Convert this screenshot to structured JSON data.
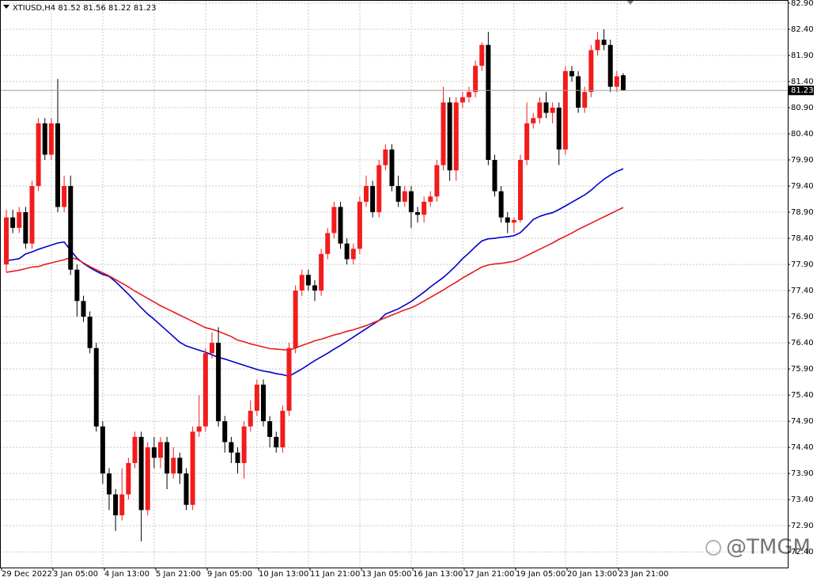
{
  "chart_data": {
    "type": "candlestick",
    "title": "XTIUSD,H4",
    "categories": [
      "29 Dec 2022",
      null,
      null,
      null,
      null,
      null,
      null,
      null,
      "3 Jan 05:00",
      null,
      null,
      null,
      null,
      null,
      null,
      null,
      "4 Jan 13:00",
      null,
      null,
      null,
      null,
      null,
      null,
      null,
      "5 Jan 21:00",
      null,
      null,
      null,
      null,
      null,
      null,
      null,
      "9 Jan 05:00",
      null,
      null,
      null,
      null,
      null,
      null,
      null,
      "10 Jan 13:00",
      null,
      null,
      null,
      null,
      null,
      null,
      null,
      "11 Jan 21:00",
      null,
      null,
      null,
      null,
      null,
      null,
      null,
      "13 Jan 05:00",
      null,
      null,
      null,
      null,
      null,
      null,
      null,
      "16 Jan 13:00",
      null,
      null,
      null,
      null,
      null,
      null,
      null,
      "17 Jan 21:00",
      null,
      null,
      null,
      null,
      null,
      null,
      null,
      "19 Jan 05:00",
      null,
      null,
      null,
      null,
      null,
      null,
      null,
      "20 Jan 13:00",
      null,
      null,
      null,
      null,
      null,
      null,
      null,
      "23 Jan 21:00"
    ],
    "open": [
      77.9,
      78.8,
      78.6,
      78.9,
      78.3,
      79.4,
      80.6,
      80.0,
      80.6,
      79.0,
      79.4,
      77.8,
      77.2,
      76.9,
      76.3,
      74.8,
      73.9,
      73.5,
      73.1,
      73.5,
      74.1,
      74.6,
      73.2,
      74.4,
      74.2,
      74.5,
      73.9,
      74.2,
      73.9,
      73.3,
      74.7,
      74.8,
      76.2,
      76.4,
      74.9,
      74.5,
      74.3,
      74.1,
      74.8,
      75.1,
      75.6,
      74.9,
      74.6,
      74.4,
      75.1,
      76.3,
      77.4,
      77.7,
      77.5,
      77.4,
      78.1,
      78.5,
      79.0,
      78.3,
      78.0,
      78.2,
      79.1,
      79.4,
      78.9,
      79.8,
      80.1,
      79.4,
      79.1,
      79.3,
      78.9,
      78.85,
      79.1,
      79.2,
      79.8,
      81.0,
      79.7,
      81.0,
      81.1,
      81.2,
      81.7,
      82.1,
      79.9,
      79.3,
      78.8,
      78.7,
      78.75,
      79.9,
      80.6,
      80.7,
      81.0,
      80.8,
      80.9,
      80.1,
      81.6,
      81.5,
      80.9,
      81.2,
      82.0,
      82.2,
      82.1,
      81.3,
      81.52
    ],
    "high": [
      78.95,
      78.95,
      79.0,
      79.0,
      79.5,
      80.7,
      80.7,
      80.7,
      81.45,
      79.6,
      79.6,
      77.9,
      77.3,
      77.0,
      76.4,
      74.9,
      74.0,
      73.6,
      74.0,
      74.2,
      74.7,
      74.7,
      74.5,
      74.6,
      74.6,
      74.6,
      74.4,
      74.3,
      74.0,
      74.8,
      75.4,
      76.3,
      76.6,
      76.7,
      75.0,
      74.6,
      74.4,
      74.9,
      75.3,
      75.7,
      75.7,
      75.0,
      74.7,
      75.2,
      76.4,
      77.5,
      77.8,
      77.8,
      77.6,
      78.2,
      78.6,
      79.1,
      79.1,
      78.4,
      78.3,
      79.2,
      79.6,
      79.5,
      79.9,
      80.2,
      80.2,
      79.6,
      79.4,
      79.4,
      79.0,
      79.2,
      79.3,
      79.9,
      81.3,
      81.1,
      81.1,
      81.2,
      81.3,
      81.8,
      82.15,
      82.35,
      80.0,
      79.4,
      78.9,
      78.8,
      80.0,
      81.0,
      80.8,
      81.1,
      81.2,
      81.0,
      81.0,
      81.7,
      81.7,
      81.6,
      81.3,
      82.1,
      82.35,
      82.4,
      82.2,
      81.6,
      81.56
    ],
    "low": [
      77.75,
      78.5,
      78.5,
      78.2,
      78.2,
      79.3,
      79.9,
      79.9,
      78.9,
      78.9,
      77.7,
      76.9,
      76.8,
      76.2,
      74.7,
      73.7,
      73.2,
      72.8,
      73.0,
      73.4,
      74.0,
      72.6,
      73.1,
      74.0,
      74.0,
      73.6,
      73.8,
      73.7,
      73.2,
      73.2,
      74.6,
      74.7,
      76.1,
      74.8,
      74.3,
      74.1,
      73.9,
      73.8,
      74.7,
      75.0,
      74.8,
      74.4,
      74.3,
      74.3,
      75.0,
      76.2,
      77.3,
      77.4,
      77.2,
      77.3,
      78.0,
      78.4,
      78.2,
      77.9,
      77.9,
      78.1,
      79.0,
      78.8,
      78.8,
      79.7,
      79.3,
      79.0,
      79.0,
      78.6,
      78.7,
      78.7,
      79.0,
      79.1,
      79.7,
      79.5,
      79.5,
      80.9,
      81.0,
      81.1,
      81.6,
      79.8,
      79.2,
      78.7,
      78.5,
      78.5,
      78.7,
      79.8,
      80.5,
      80.6,
      80.7,
      80.6,
      79.8,
      80.0,
      81.4,
      80.8,
      80.8,
      81.1,
      81.9,
      82.0,
      81.2,
      81.2,
      81.22
    ],
    "close": [
      78.8,
      78.6,
      78.9,
      78.3,
      79.4,
      80.6,
      80.0,
      80.6,
      79.0,
      79.4,
      77.8,
      77.2,
      76.9,
      76.3,
      74.8,
      73.9,
      73.5,
      73.1,
      73.5,
      74.1,
      74.6,
      73.2,
      74.4,
      74.2,
      74.5,
      73.9,
      74.2,
      73.9,
      73.3,
      74.7,
      74.8,
      76.2,
      76.4,
      74.9,
      74.5,
      74.3,
      74.1,
      74.8,
      75.1,
      75.6,
      74.9,
      74.6,
      74.4,
      75.1,
      76.3,
      77.4,
      77.7,
      77.5,
      77.4,
      78.1,
      78.5,
      79.0,
      78.3,
      78.0,
      78.2,
      79.1,
      79.4,
      78.9,
      79.8,
      80.1,
      79.4,
      79.1,
      79.3,
      78.9,
      78.85,
      79.1,
      79.2,
      79.8,
      81.0,
      79.7,
      81.0,
      81.1,
      81.2,
      81.7,
      82.1,
      79.9,
      79.3,
      78.8,
      78.7,
      78.75,
      79.9,
      80.6,
      80.7,
      81.0,
      80.8,
      80.9,
      80.1,
      81.6,
      81.5,
      80.9,
      81.2,
      82.0,
      82.2,
      82.1,
      81.3,
      81.5,
      81.23
    ],
    "bull_color": "#f21c1c",
    "bear_color": "#000000",
    "moving_averages": [
      {
        "color": "#0000cc",
        "values": [
          77.97,
          77.99,
          78.01,
          78.1,
          78.14,
          78.19,
          78.23,
          78.27,
          78.31,
          78.33,
          78.17,
          78.02,
          77.92,
          77.84,
          77.77,
          77.71,
          77.67,
          77.57,
          77.45,
          77.33,
          77.2,
          77.07,
          76.95,
          76.85,
          76.74,
          76.63,
          76.52,
          76.41,
          76.34,
          76.3,
          76.26,
          76.22,
          76.17,
          76.12,
          76.09,
          76.05,
          76.01,
          75.97,
          75.93,
          75.89,
          75.86,
          75.84,
          75.81,
          75.79,
          75.76,
          75.83,
          75.9,
          75.98,
          76.06,
          76.13,
          76.2,
          76.28,
          76.35,
          76.43,
          76.51,
          76.59,
          76.67,
          76.75,
          76.83,
          76.95,
          77.0,
          77.05,
          77.12,
          77.19,
          77.28,
          77.37,
          77.47,
          77.56,
          77.65,
          77.76,
          77.88,
          78.01,
          78.12,
          78.24,
          78.35,
          78.39,
          78.4,
          78.42,
          78.43,
          78.45,
          78.51,
          78.63,
          78.76,
          78.82,
          78.86,
          78.89,
          78.95,
          79.02,
          79.09,
          79.16,
          79.23,
          79.32,
          79.43,
          79.53,
          79.61,
          79.68,
          79.73
        ]
      },
      {
        "color": "#e81c1c",
        "values": [
          77.75,
          77.77,
          77.79,
          77.82,
          77.85,
          77.86,
          77.9,
          77.93,
          77.96,
          77.99,
          78.03,
          78.0,
          77.93,
          77.86,
          77.8,
          77.74,
          77.68,
          77.61,
          77.54,
          77.47,
          77.39,
          77.32,
          77.25,
          77.18,
          77.11,
          77.05,
          76.99,
          76.93,
          76.87,
          76.81,
          76.75,
          76.69,
          76.66,
          76.62,
          76.57,
          76.52,
          76.45,
          76.42,
          76.38,
          76.35,
          76.32,
          76.29,
          76.28,
          76.27,
          76.26,
          76.3,
          76.35,
          76.39,
          76.44,
          76.47,
          76.51,
          76.55,
          76.58,
          76.62,
          76.65,
          76.69,
          76.73,
          76.78,
          76.83,
          76.88,
          76.93,
          76.98,
          77.03,
          77.07,
          77.13,
          77.2,
          77.27,
          77.34,
          77.41,
          77.49,
          77.56,
          77.64,
          77.71,
          77.78,
          77.85,
          77.89,
          77.91,
          77.92,
          77.94,
          77.96,
          78.01,
          78.07,
          78.13,
          78.19,
          78.25,
          78.31,
          78.38,
          78.44,
          78.5,
          78.57,
          78.63,
          78.69,
          78.75,
          78.81,
          78.87,
          78.93,
          78.99
        ]
      }
    ],
    "ylim": [
      72.1,
      82.96
    ],
    "yticks": [
      {
        "value": 82.9,
        "label": "82.90"
      },
      {
        "value": 82.4,
        "label": "82.40"
      },
      {
        "value": 81.9,
        "label": "81.90"
      },
      {
        "value": 81.4,
        "label": "81.40"
      },
      {
        "value": 80.9,
        "label": "80.90"
      },
      {
        "value": 80.4,
        "label": "80.40"
      },
      {
        "value": 79.9,
        "label": "79.90"
      },
      {
        "value": 79.4,
        "label": "79.40"
      },
      {
        "value": 78.9,
        "label": "78.90"
      },
      {
        "value": 78.4,
        "label": "78.40"
      },
      {
        "value": 77.9,
        "label": "77.90"
      },
      {
        "value": 77.4,
        "label": "77.40"
      },
      {
        "value": 76.9,
        "label": "76.90"
      },
      {
        "value": 76.4,
        "label": "76.40"
      },
      {
        "value": 75.9,
        "label": "75.90"
      },
      {
        "value": 75.4,
        "label": "75.40"
      },
      {
        "value": 74.9,
        "label": "74.90"
      },
      {
        "value": 74.4,
        "label": "74.40"
      },
      {
        "value": 73.9,
        "label": "73.90"
      },
      {
        "value": 73.4,
        "label": "73.40"
      },
      {
        "value": 72.9,
        "label": "72.90"
      },
      {
        "value": 72.4,
        "label": "72.40"
      }
    ],
    "grid": true,
    "watermark": "@TMGM"
  }
}
